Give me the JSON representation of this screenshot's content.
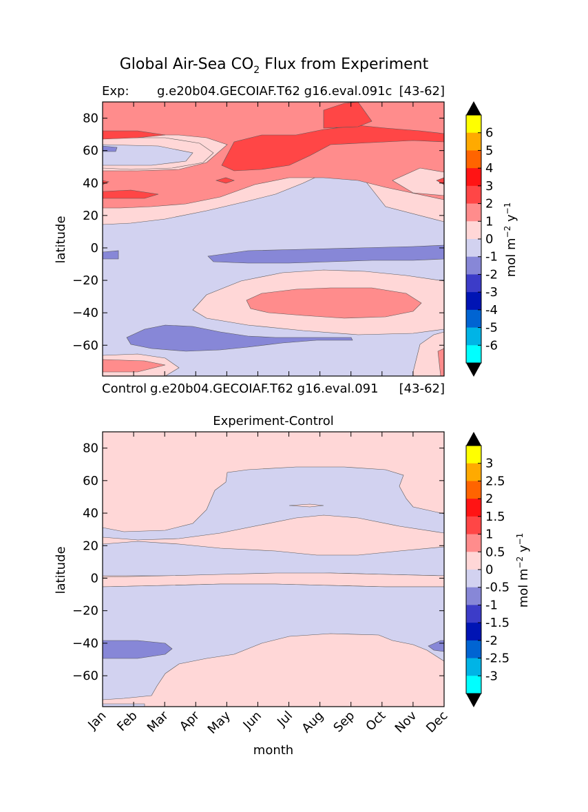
{
  "figure": {
    "suptitle": "Global Air-Sea CO",
    "suptitle_sub": "2",
    "suptitle_tail": " Flux from Experiment"
  },
  "chart_data": [
    {
      "type": "heatmap",
      "title_left": "Exp:",
      "title_center": "g.e20b04.GECOIAF.T62 g16.eval.091c",
      "title_right": "[43-62]",
      "xlabel": "",
      "ylabel": "latitude",
      "ylim": [
        -79,
        90
      ],
      "yticks": [
        80,
        60,
        40,
        20,
        0,
        -20,
        -40,
        -60
      ],
      "colorbar": {
        "label": "mol m",
        "label_sup1": "−2",
        "label_mid": " y",
        "label_sup2": "−1",
        "levels": [
          -7,
          -6,
          -5,
          -4,
          -3,
          -2,
          -1,
          0,
          1,
          2,
          3,
          4,
          5,
          6,
          7
        ],
        "tick_labels": [
          "6",
          "5",
          "4",
          "3",
          "2",
          "1",
          "0",
          "-1",
          "-2",
          "-3",
          "-4",
          "-5",
          "-6"
        ],
        "colors": [
          "#00ffff",
          "#00b4e6",
          "#0064d2",
          "#0014b4",
          "#3c3cc8",
          "#8787d7",
          "#d2d2f0",
          "#ffd7d7",
          "#ff8c8c",
          "#ff4646",
          "#ff1414",
          "#ff6400",
          "#ffaa00",
          "#ffff00"
        ],
        "extend_color": "#000000"
      }
    },
    {
      "type": "heatmap",
      "title_left": "Control",
      "title_center": "g.e20b04.GECOIAF.T62 g16.eval.091",
      "title_right": "[43-62]",
      "subtitle": "Experiment-Control",
      "xlabel": "month",
      "ylabel": "latitude",
      "ylim": [
        -79,
        90
      ],
      "yticks": [
        80,
        60,
        40,
        20,
        0,
        -20,
        -40,
        -60
      ],
      "xticks": [
        "Jan",
        "Feb",
        "Mar",
        "Apr",
        "May",
        "Jun",
        "Jul",
        "Aug",
        "Sep",
        "Oct",
        "Nov",
        "Dec"
      ],
      "colorbar": {
        "label": "mol m",
        "label_sup1": "−2",
        "label_mid": " y",
        "label_sup2": "−1",
        "levels": [
          -3.5,
          -3,
          -2.5,
          -2,
          -1.5,
          -1,
          -0.5,
          0,
          0.5,
          1,
          1.5,
          2,
          2.5,
          3,
          3.5
        ],
        "tick_labels": [
          "3",
          "2.5",
          "2",
          "1.5",
          "1",
          "0.5",
          "0",
          "-0.5",
          "-1",
          "-1.5",
          "-2",
          "-2.5",
          "-3"
        ],
        "colors": [
          "#00ffff",
          "#00b4e6",
          "#0064d2",
          "#0014b4",
          "#3c3cc8",
          "#8787d7",
          "#d2d2f0",
          "#ffd7d7",
          "#ff8c8c",
          "#ff4646",
          "#ff1414",
          "#ff6400",
          "#ffaa00",
          "#ffff00"
        ],
        "extend_color": "#000000"
      }
    }
  ],
  "palette": {
    "neg1": "#d2d2f0",
    "neg2": "#8787d7",
    "pos1": "#ffd7d7",
    "pos2": "#ff8c8c",
    "pos3": "#ff4646"
  }
}
